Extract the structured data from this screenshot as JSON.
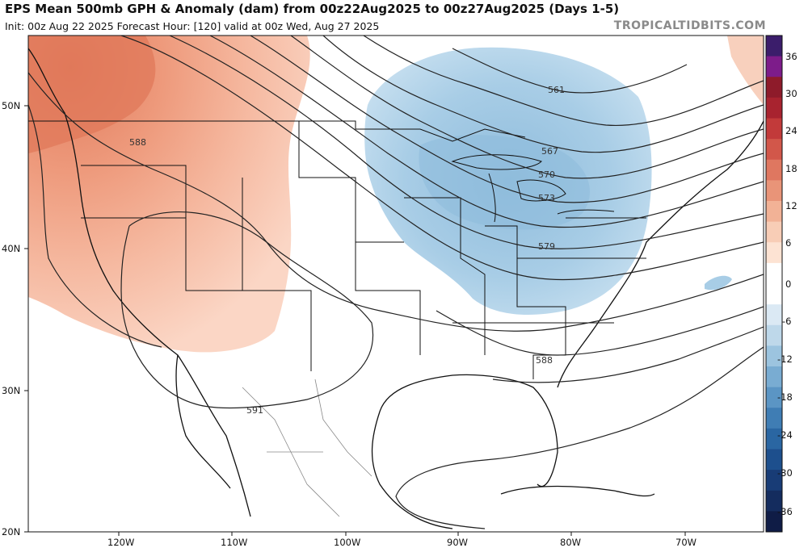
{
  "header": {
    "title": "EPS Mean 500mb GPH & Anomaly (dam) from 00z22Aug2025 to 00z27Aug2025 (Days 1-5)",
    "subtitle": "Init: 00z Aug 22 2025   Forecast Hour: [120]   valid at 00z Wed, Aug 27 2025",
    "brand": "TROPICALTIDBITS.COM"
  },
  "map": {
    "lat_labels": [
      "50N",
      "40N",
      "30N",
      "20N"
    ],
    "lon_labels": [
      "120W",
      "110W",
      "100W",
      "90W",
      "80W",
      "70W"
    ],
    "contour_labels": [
      "561",
      "567",
      "570",
      "573",
      "579",
      "588",
      "588",
      "591"
    ],
    "ridge_color": "#f2a384",
    "trough_color": "#a8cde6"
  },
  "colorbar": {
    "labels": [
      "36",
      "30",
      "24",
      "18",
      "12",
      "6",
      "0",
      "-6",
      "-12",
      "-18",
      "-24",
      "-30",
      "-36"
    ],
    "colors": [
      "#3b1d6b",
      "#7d1c8a",
      "#8e1b2a",
      "#a8232f",
      "#c23a3a",
      "#d2574a",
      "#df7760",
      "#e99478",
      "#f2b296",
      "#f8cdb6",
      "#fde3d3",
      "#ffffff",
      "#ffffff",
      "#dbe9f4",
      "#bed8ea",
      "#9cc4df",
      "#79acd2",
      "#5b95c4",
      "#3f7db4",
      "#2a66a2",
      "#1d4f8d",
      "#183c76",
      "#142c5e",
      "#0f1c46"
    ]
  }
}
